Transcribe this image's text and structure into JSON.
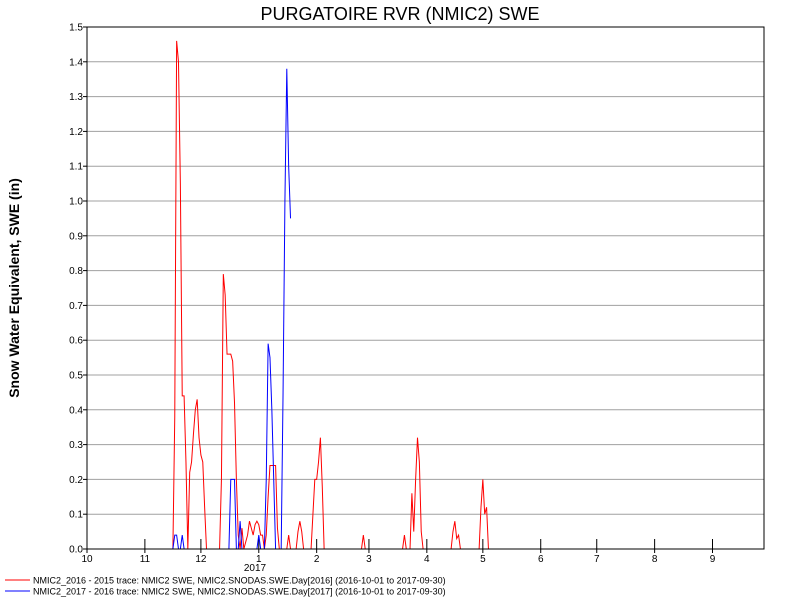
{
  "chart_data": {
    "type": "line",
    "title": "PURGATOIRE RVR (NMIC2) SWE",
    "ylabel": "Snow Water Equivalent, SWE (in)",
    "xlabel": "",
    "ylim": [
      0,
      1.5
    ],
    "yticks": [
      0.0,
      0.1,
      0.2,
      0.3,
      0.4,
      0.5,
      0.6,
      0.7,
      0.8,
      0.9,
      1.0,
      1.1,
      1.2,
      1.3,
      1.4,
      1.5
    ],
    "ytick_labels": [
      "0.0",
      "0.1",
      "0.2",
      "0.3",
      "0.4",
      "0.5",
      "0.6",
      "0.7",
      "0.8",
      "0.9",
      "1.0",
      "1.1",
      "1.2",
      "1.3",
      "1.4",
      "1.5"
    ],
    "xlim": [
      "2016-10-01",
      "2017-09-30"
    ],
    "xticks": [
      {
        "date": "2016-10-01",
        "label": "10"
      },
      {
        "date": "2016-11-01",
        "label": "11"
      },
      {
        "date": "2016-12-01",
        "label": "12"
      },
      {
        "date": "2017-01-01",
        "label": "1"
      },
      {
        "date": "2017-02-01",
        "label": "2"
      },
      {
        "date": "2017-03-01",
        "label": "3"
      },
      {
        "date": "2017-04-01",
        "label": "4"
      },
      {
        "date": "2017-05-01",
        "label": "5"
      },
      {
        "date": "2017-06-01",
        "label": "6"
      },
      {
        "date": "2017-07-01",
        "label": "7"
      },
      {
        "date": "2017-08-01",
        "label": "8"
      },
      {
        "date": "2017-09-01",
        "label": "9"
      }
    ],
    "year_label": "2017",
    "grid": true,
    "legend_position": "bottom-left",
    "series": [
      {
        "name": "NMIC2_2016 - 2015 trace: NMIC2 SWE, NMIC2.SNODAS.SWE.Day[2016] (2016-10-01 to 2017-09-30)",
        "color": "#ff0000",
        "points": [
          [
            "2016-11-16",
            0.0
          ],
          [
            "2016-11-17",
            0.38
          ],
          [
            "2016-11-18",
            1.46
          ],
          [
            "2016-11-19",
            1.4
          ],
          [
            "2016-11-20",
            1.05
          ],
          [
            "2016-11-21",
            0.44
          ],
          [
            "2016-11-22",
            0.44
          ],
          [
            "2016-11-23",
            0.25
          ],
          [
            "2016-11-24",
            0.0
          ],
          [
            "2016-11-25",
            0.22
          ],
          [
            "2016-11-26",
            0.25
          ],
          [
            "2016-11-27",
            0.33
          ],
          [
            "2016-11-28",
            0.4
          ],
          [
            "2016-11-29",
            0.43
          ],
          [
            "2016-11-30",
            0.32
          ],
          [
            "2016-12-01",
            0.27
          ],
          [
            "2016-12-02",
            0.25
          ],
          [
            "2016-12-03",
            0.12
          ],
          [
            "2016-12-04",
            0.0
          ],
          [
            "2016-12-11",
            0.0
          ],
          [
            "2016-12-12",
            0.2
          ],
          [
            "2016-12-13",
            0.79
          ],
          [
            "2016-12-14",
            0.73
          ],
          [
            "2016-12-15",
            0.56
          ],
          [
            "2016-12-16",
            0.56
          ],
          [
            "2016-12-17",
            0.56
          ],
          [
            "2016-12-18",
            0.54
          ],
          [
            "2016-12-19",
            0.42
          ],
          [
            "2016-12-20",
            0.2
          ],
          [
            "2016-12-21",
            0.04
          ],
          [
            "2016-12-22",
            0.0
          ],
          [
            "2016-12-23",
            0.06
          ],
          [
            "2016-12-24",
            0.0
          ],
          [
            "2016-12-26",
            0.04
          ],
          [
            "2016-12-27",
            0.08
          ],
          [
            "2016-12-28",
            0.06
          ],
          [
            "2016-12-29",
            0.04
          ],
          [
            "2016-12-30",
            0.07
          ],
          [
            "2016-12-31",
            0.08
          ],
          [
            "2017-01-01",
            0.07
          ],
          [
            "2017-01-02",
            0.04
          ],
          [
            "2017-01-03",
            0.04
          ],
          [
            "2017-01-04",
            0.0
          ],
          [
            "2017-01-05",
            0.04
          ],
          [
            "2017-01-06",
            0.15
          ],
          [
            "2017-01-07",
            0.24
          ],
          [
            "2017-01-08",
            0.24
          ],
          [
            "2017-01-09",
            0.24
          ],
          [
            "2017-01-10",
            0.24
          ],
          [
            "2017-01-11",
            0.06
          ],
          [
            "2017-01-12",
            0.0
          ],
          [
            "2017-01-16",
            0.0
          ],
          [
            "2017-01-17",
            0.04
          ],
          [
            "2017-01-18",
            0.0
          ],
          [
            "2017-01-21",
            0.0
          ],
          [
            "2017-01-22",
            0.05
          ],
          [
            "2017-01-23",
            0.08
          ],
          [
            "2017-01-24",
            0.05
          ],
          [
            "2017-01-25",
            0.0
          ],
          [
            "2017-01-29",
            0.0
          ],
          [
            "2017-01-30",
            0.1
          ],
          [
            "2017-01-31",
            0.2
          ],
          [
            "2017-02-01",
            0.2
          ],
          [
            "2017-02-02",
            0.25
          ],
          [
            "2017-02-03",
            0.32
          ],
          [
            "2017-02-04",
            0.18
          ],
          [
            "2017-02-05",
            0.0
          ],
          [
            "2017-02-25",
            0.0
          ],
          [
            "2017-02-26",
            0.04
          ],
          [
            "2017-02-27",
            0.0
          ],
          [
            "2017-03-19",
            0.0
          ],
          [
            "2017-03-20",
            0.04
          ],
          [
            "2017-03-21",
            0.0
          ],
          [
            "2017-03-23",
            0.0
          ],
          [
            "2017-03-24",
            0.16
          ],
          [
            "2017-03-25",
            0.05
          ],
          [
            "2017-03-26",
            0.2
          ],
          [
            "2017-03-27",
            0.32
          ],
          [
            "2017-03-28",
            0.25
          ],
          [
            "2017-03-29",
            0.05
          ],
          [
            "2017-03-30",
            0.0
          ],
          [
            "2017-04-14",
            0.0
          ],
          [
            "2017-04-15",
            0.05
          ],
          [
            "2017-04-16",
            0.08
          ],
          [
            "2017-04-17",
            0.03
          ],
          [
            "2017-04-18",
            0.04
          ],
          [
            "2017-04-19",
            0.0
          ],
          [
            "2017-04-29",
            0.0
          ],
          [
            "2017-04-30",
            0.12
          ],
          [
            "2017-05-01",
            0.2
          ],
          [
            "2017-05-02",
            0.1
          ],
          [
            "2017-05-03",
            0.12
          ],
          [
            "2017-05-04",
            0.0
          ]
        ]
      },
      {
        "name": "NMIC2_2017 - 2016 trace: NMIC2 SWE, NMIC2.SNODAS.SWE.Day[2017] (2016-10-01 to 2017-09-30)",
        "color": "#0000ff",
        "points": [
          [
            "2016-11-16",
            0.0
          ],
          [
            "2016-11-17",
            0.04
          ],
          [
            "2016-11-18",
            0.04
          ],
          [
            "2016-11-19",
            0.0
          ],
          [
            "2016-11-20",
            0.0
          ],
          [
            "2016-11-21",
            0.04
          ],
          [
            "2016-11-22",
            0.0
          ],
          [
            "2016-12-16",
            0.0
          ],
          [
            "2016-12-17",
            0.2
          ],
          [
            "2016-12-18",
            0.2
          ],
          [
            "2016-12-19",
            0.2
          ],
          [
            "2016-12-20",
            0.0
          ],
          [
            "2016-12-21",
            0.0
          ],
          [
            "2016-12-22",
            0.08
          ],
          [
            "2016-12-23",
            0.0
          ],
          [
            "2016-12-31",
            0.0
          ],
          [
            "2017-01-01",
            0.04
          ],
          [
            "2017-01-02",
            0.0
          ],
          [
            "2017-01-04",
            0.0
          ],
          [
            "2017-01-05",
            0.2
          ],
          [
            "2017-01-06",
            0.59
          ],
          [
            "2017-01-07",
            0.55
          ],
          [
            "2017-01-08",
            0.4
          ],
          [
            "2017-01-09",
            0.2
          ],
          [
            "2017-01-10",
            0.0
          ],
          [
            "2017-01-13",
            0.0
          ],
          [
            "2017-01-14",
            0.45
          ],
          [
            "2017-01-15",
            1.0
          ],
          [
            "2017-01-16",
            1.38
          ],
          [
            "2017-01-17",
            1.1
          ],
          [
            "2017-01-18",
            0.95
          ]
        ]
      }
    ]
  }
}
